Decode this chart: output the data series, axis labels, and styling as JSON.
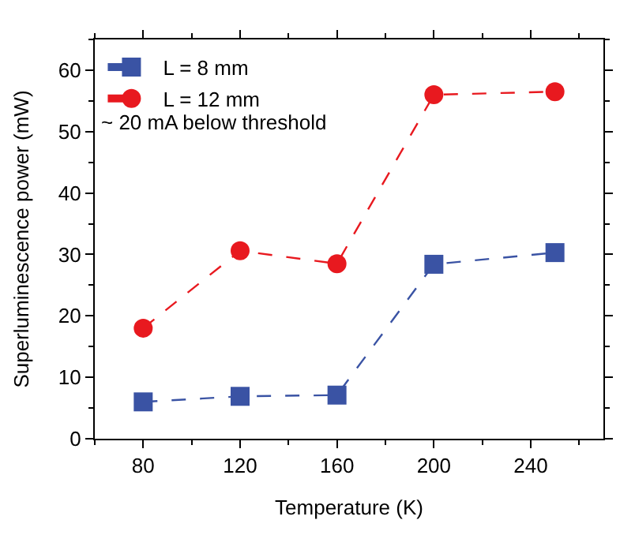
{
  "chart_data": {
    "type": "line",
    "xlabel": "Temperature (K)",
    "ylabel": "Superluminescence power (mW)",
    "x": [
      80,
      120,
      160,
      200,
      250
    ],
    "series": [
      {
        "name": "L = 8 mm",
        "color": "#3a53a4",
        "marker": "square",
        "values": [
          6,
          6.9,
          7.1,
          28.4,
          30.3
        ]
      },
      {
        "name": "L = 12 mm",
        "color": "#e8191f",
        "marker": "circle",
        "values": [
          18,
          30.6,
          28.5,
          56,
          56.5
        ]
      }
    ],
    "annotations": [
      "~ 20 mA below threshold"
    ],
    "xlim": [
      60,
      270
    ],
    "xticks": [
      80,
      120,
      160,
      200,
      240
    ],
    "ylim": [
      0,
      65
    ],
    "yticks": [
      0,
      10,
      20,
      30,
      40,
      50,
      60
    ],
    "legend": "top left",
    "line_style": "dashed",
    "grid": false
  }
}
